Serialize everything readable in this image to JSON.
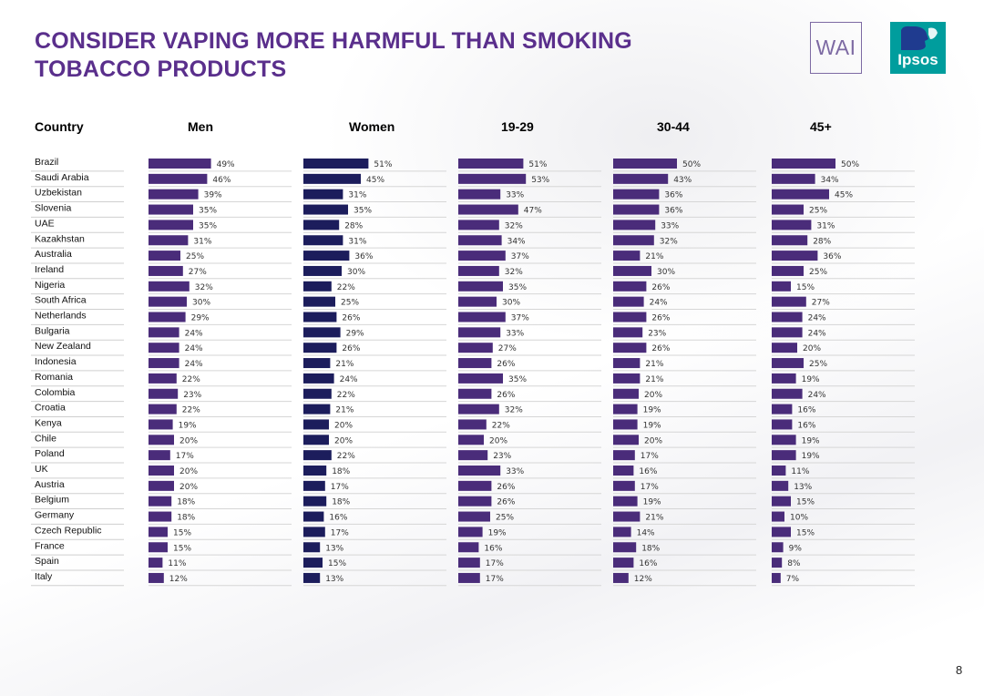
{
  "title_line1": "CONSIDER VAPING MORE HARMFUL THAN SMOKING",
  "title_line2": "TOBACCO PRODUCTS",
  "logos": {
    "wai": "WAI",
    "ipsos": "Ipsos"
  },
  "page_number": "8",
  "colors": {
    "title": "#5a2f8c",
    "men": "#4a2c7a",
    "women": "#1c1d5c",
    "age": "#4a2c7a",
    "teal": "#009d9d"
  },
  "chart_data": {
    "type": "bar",
    "row_header": "Country",
    "unit": "%",
    "categories": [
      "Brazil",
      "Saudi Arabia",
      "Uzbekistan",
      "Slovenia",
      "UAE",
      "Kazakhstan",
      "Australia",
      "Ireland",
      "Nigeria",
      "South Africa",
      "Netherlands",
      "Bulgaria",
      "New Zealand",
      "Indonesia",
      "Romania",
      "Colombia",
      "Croatia",
      "Kenya",
      "Chile",
      "Poland",
      "UK",
      "Austria",
      "Belgium",
      "Germany",
      "Czech Republic",
      "France",
      "Spain",
      "Italy"
    ],
    "series": [
      {
        "name": "Men",
        "values": [
          49,
          46,
          39,
          35,
          35,
          31,
          25,
          27,
          32,
          30,
          29,
          24,
          24,
          24,
          22,
          23,
          22,
          19,
          20,
          17,
          20,
          20,
          18,
          18,
          15,
          15,
          11,
          12
        ]
      },
      {
        "name": "Women",
        "values": [
          51,
          45,
          31,
          35,
          28,
          31,
          36,
          30,
          22,
          25,
          26,
          29,
          26,
          21,
          24,
          22,
          21,
          20,
          20,
          22,
          18,
          17,
          18,
          16,
          17,
          13,
          15,
          13
        ]
      },
      {
        "name": "19-29",
        "values": [
          51,
          53,
          33,
          47,
          32,
          34,
          37,
          32,
          35,
          30,
          37,
          33,
          27,
          26,
          35,
          26,
          32,
          22,
          20,
          23,
          33,
          26,
          26,
          25,
          19,
          16,
          17,
          17
        ]
      },
      {
        "name": "30-44",
        "values": [
          50,
          43,
          36,
          36,
          33,
          32,
          21,
          30,
          26,
          24,
          26,
          23,
          26,
          21,
          21,
          20,
          19,
          19,
          20,
          17,
          16,
          17,
          19,
          21,
          14,
          18,
          16,
          12
        ]
      },
      {
        "name": "45+",
        "values": [
          50,
          34,
          45,
          25,
          31,
          28,
          36,
          25,
          15,
          27,
          24,
          24,
          20,
          25,
          19,
          24,
          16,
          16,
          19,
          19,
          11,
          13,
          15,
          10,
          15,
          9,
          8,
          7
        ]
      }
    ]
  }
}
